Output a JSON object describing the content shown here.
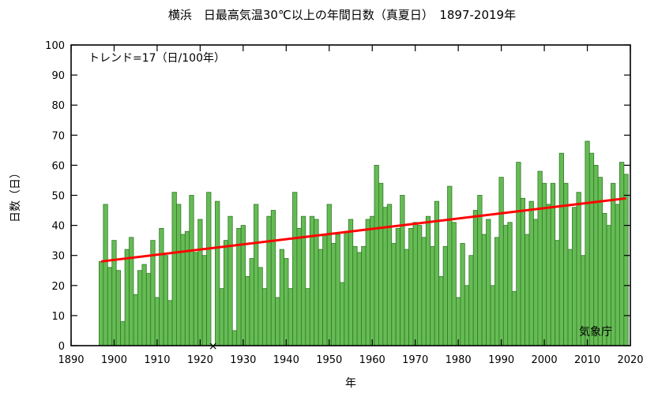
{
  "chart_data": {
    "type": "bar",
    "title": "横浜　日最高気温30℃以上の年間日数（真夏日）　1897-2019年",
    "xlabel": "年",
    "ylabel": "日数（日）",
    "xlim": [
      1890,
      2020
    ],
    "ylim": [
      0,
      100
    ],
    "xticks": [
      1890,
      1900,
      1910,
      1920,
      1930,
      1940,
      1950,
      1960,
      1970,
      1980,
      1990,
      2000,
      2010,
      2020
    ],
    "yticks": [
      0,
      10,
      20,
      30,
      40,
      50,
      60,
      70,
      80,
      90,
      100
    ],
    "grid": false,
    "trend_label": "トレンド=17（日/100年）",
    "trend": {
      "per_100_years": 17,
      "start": [
        1897,
        28
      ],
      "end": [
        2019,
        49
      ],
      "color": "#ff0000"
    },
    "source_label": "気象庁",
    "missing_years": [
      1923
    ],
    "missing_marker": "×",
    "bar_color": "#66bb55",
    "years": [
      1897,
      1898,
      1899,
      1900,
      1901,
      1902,
      1903,
      1904,
      1905,
      1906,
      1907,
      1908,
      1909,
      1910,
      1911,
      1912,
      1913,
      1914,
      1915,
      1916,
      1917,
      1918,
      1919,
      1920,
      1921,
      1922,
      1923,
      1924,
      1925,
      1926,
      1927,
      1928,
      1929,
      1930,
      1931,
      1932,
      1933,
      1934,
      1935,
      1936,
      1937,
      1938,
      1939,
      1940,
      1941,
      1942,
      1943,
      1944,
      1945,
      1946,
      1947,
      1948,
      1949,
      1950,
      1951,
      1952,
      1953,
      1954,
      1955,
      1956,
      1957,
      1958,
      1959,
      1960,
      1961,
      1962,
      1963,
      1964,
      1965,
      1966,
      1967,
      1968,
      1969,
      1970,
      1971,
      1972,
      1973,
      1974,
      1975,
      1976,
      1977,
      1978,
      1979,
      1980,
      1981,
      1982,
      1983,
      1984,
      1985,
      1986,
      1987,
      1988,
      1989,
      1990,
      1991,
      1992,
      1993,
      1994,
      1995,
      1996,
      1997,
      1998,
      1999,
      2000,
      2001,
      2002,
      2003,
      2004,
      2005,
      2006,
      2007,
      2008,
      2009,
      2010,
      2011,
      2012,
      2013,
      2014,
      2015,
      2016,
      2017,
      2018,
      2019
    ],
    "values": [
      28,
      47,
      26,
      35,
      25,
      8,
      32,
      36,
      17,
      25,
      27,
      24,
      35,
      16,
      39,
      30,
      15,
      51,
      47,
      37,
      38,
      50,
      31,
      42,
      30,
      51,
      null,
      48,
      19,
      35,
      43,
      5,
      39,
      40,
      23,
      29,
      47,
      26,
      19,
      43,
      45,
      16,
      32,
      29,
      19,
      51,
      39,
      43,
      19,
      43,
      42,
      32,
      37,
      47,
      34,
      37,
      21,
      38,
      42,
      33,
      31,
      33,
      42,
      43,
      60,
      54,
      46,
      47,
      34,
      39,
      50,
      32,
      39,
      41,
      40,
      36,
      43,
      33,
      48,
      23,
      33,
      53,
      41,
      16,
      34,
      20,
      30,
      45,
      50,
      37,
      42,
      20,
      36,
      56,
      40,
      41,
      18,
      61,
      49,
      37,
      48,
      42,
      58,
      54,
      47,
      54,
      35,
      64,
      54,
      32,
      46,
      51,
      30,
      68,
      64,
      60,
      56,
      44,
      40,
      54,
      47,
      61,
      57
    ]
  }
}
